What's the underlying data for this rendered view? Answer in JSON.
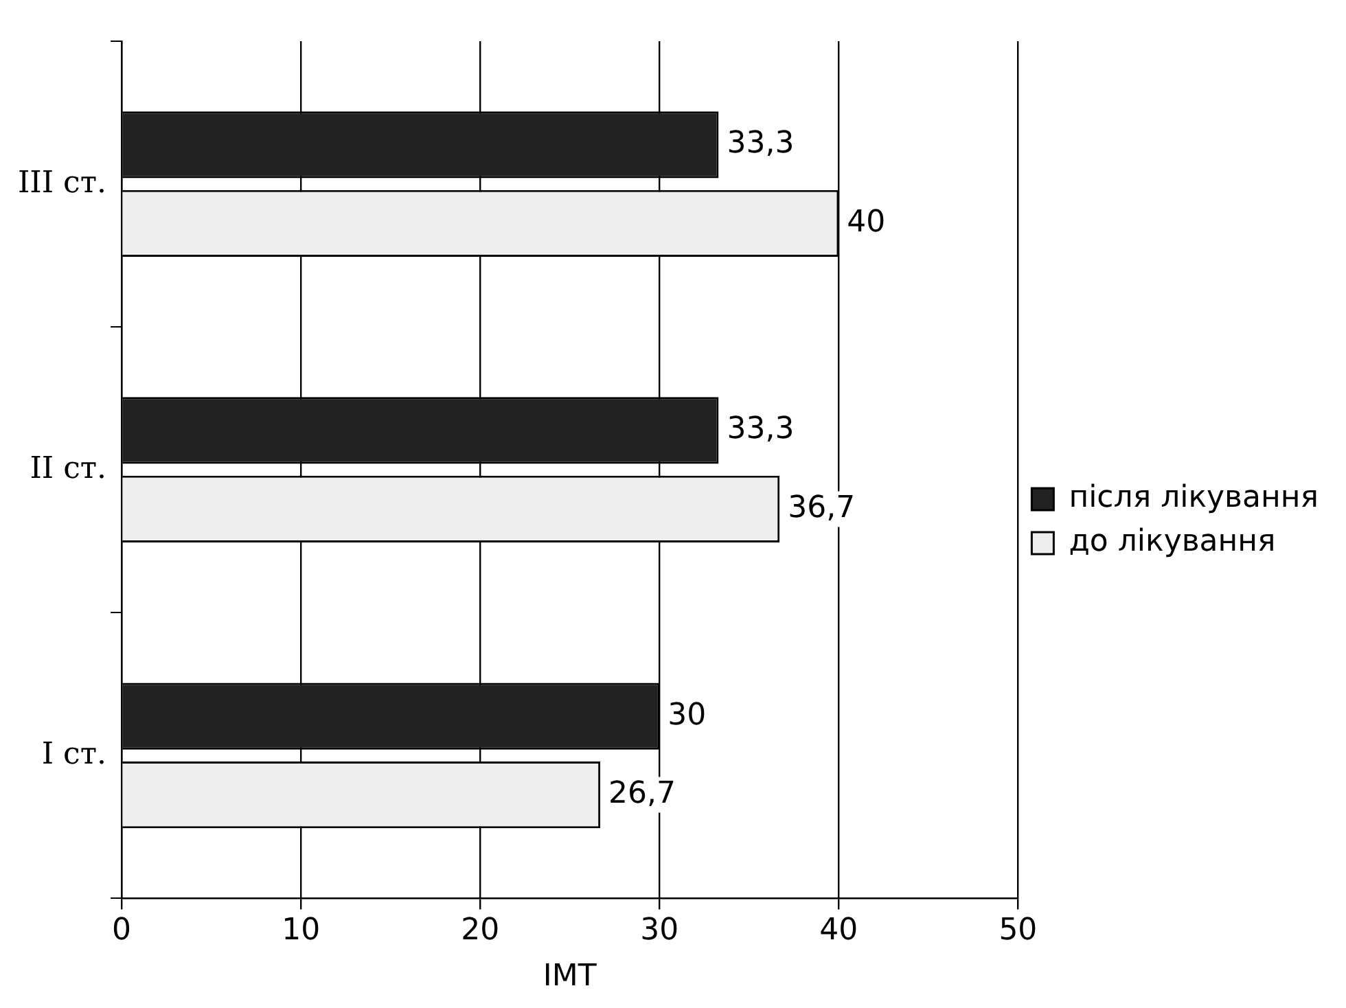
{
  "chart_data": {
    "type": "bar",
    "orientation": "horizontal",
    "xlabel": "ІМТ",
    "categories": [
      "III ст.",
      "II ст.",
      "I ст."
    ],
    "series": [
      {
        "name": "після лікування",
        "color": "#222222",
        "values": [
          33.3,
          33.3,
          30
        ],
        "value_labels": [
          "33,3",
          "33,3",
          "30"
        ]
      },
      {
        "name": "до лікування",
        "color": "#eeeeee",
        "values": [
          40,
          36.7,
          26.7
        ],
        "value_labels": [
          "40",
          "36,7",
          "26,7"
        ]
      }
    ],
    "xlim": [
      0,
      50
    ],
    "xticks": [
      0,
      10,
      20,
      30,
      40,
      50
    ],
    "grid": "x",
    "legend": "right"
  }
}
